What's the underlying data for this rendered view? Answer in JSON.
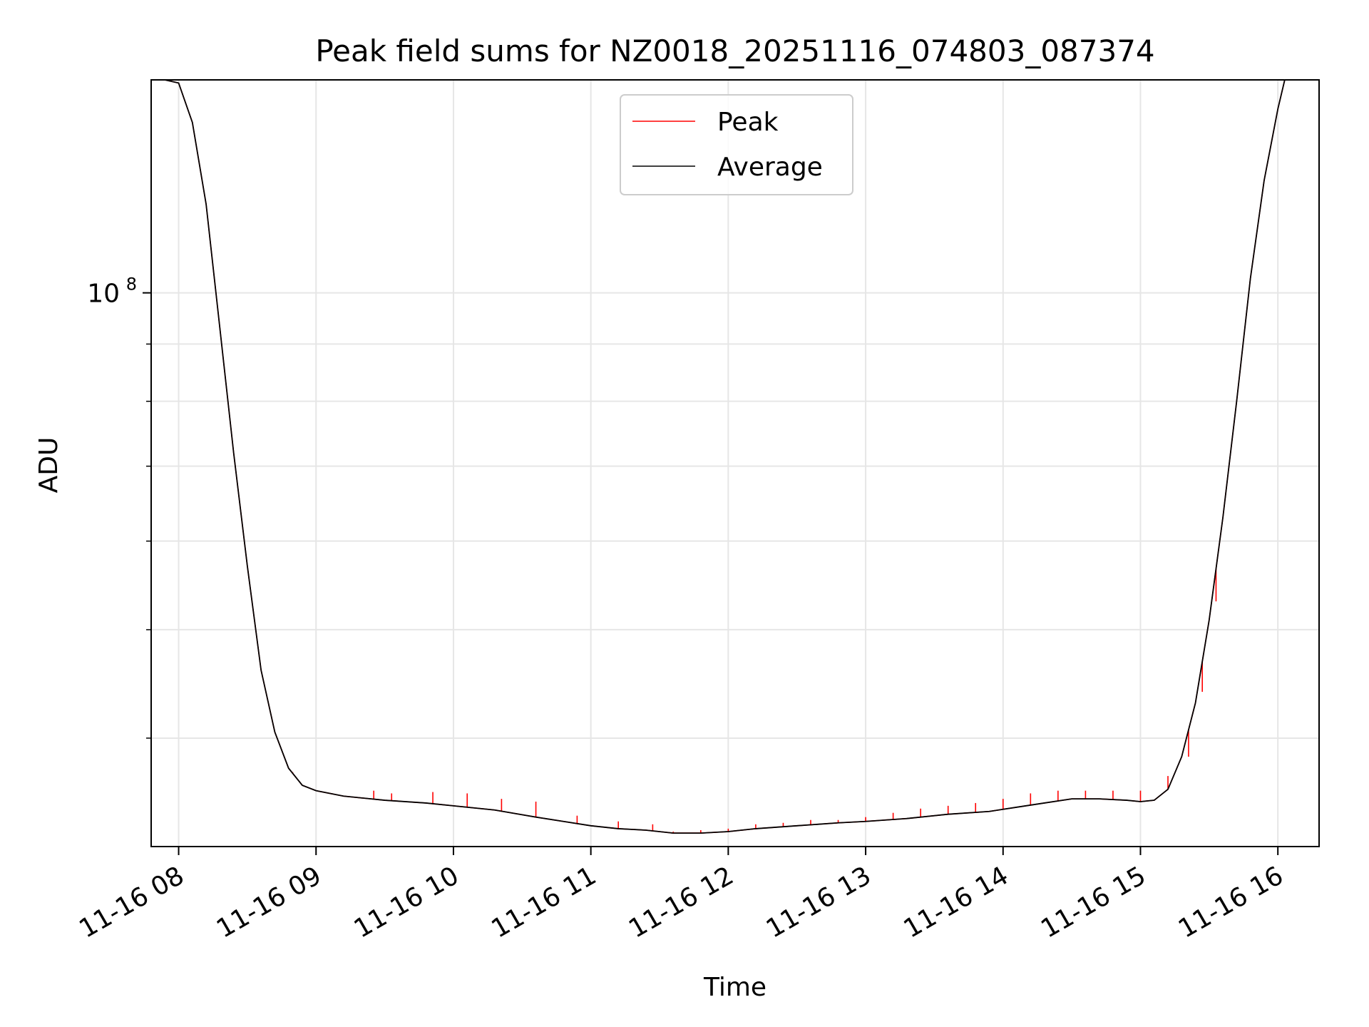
{
  "chart_data": {
    "type": "line",
    "title": "Peak field sums for NZ0018_20251116_074803_087374",
    "xlabel": "Time",
    "ylabel": "ADU",
    "yscale": "log",
    "xlim": [
      7.8,
      16.3
    ],
    "ylim": [
      32000000,
      155000000
    ],
    "grid": true,
    "legend_position": "upper center",
    "x_ticks": [
      {
        "value": 8,
        "label": "11-16 08"
      },
      {
        "value": 9,
        "label": "11-16 09"
      },
      {
        "value": 10,
        "label": "11-16 10"
      },
      {
        "value": 11,
        "label": "11-16 11"
      },
      {
        "value": 12,
        "label": "11-16 12"
      },
      {
        "value": 13,
        "label": "11-16 13"
      },
      {
        "value": 14,
        "label": "11-16 14"
      },
      {
        "value": 15,
        "label": "11-16 15"
      },
      {
        "value": 16,
        "label": "11-16 16"
      }
    ],
    "y_major_ticks": [
      {
        "value": 100000000,
        "base": "10",
        "exponent": "8"
      }
    ],
    "y_minor_ticks": [
      40000000,
      50000000,
      60000000,
      70000000,
      80000000,
      90000000,
      200000000
    ],
    "series": [
      {
        "name": "Peak",
        "color": "#ff0000",
        "note": "follows Average with frequent upward spikes",
        "spikes": [
          [
            8.83,
            37300000
          ],
          [
            9.42,
            35900000
          ],
          [
            9.55,
            35700000
          ],
          [
            9.85,
            35800000
          ],
          [
            10.1,
            35700000
          ],
          [
            10.35,
            35300000
          ],
          [
            10.6,
            35100000
          ],
          [
            10.9,
            34100000
          ],
          [
            11.2,
            33700000
          ],
          [
            11.45,
            33500000
          ],
          [
            11.6,
            33000000
          ],
          [
            11.8,
            33100000
          ],
          [
            12.0,
            33200000
          ],
          [
            12.2,
            33500000
          ],
          [
            12.4,
            33600000
          ],
          [
            12.6,
            33800000
          ],
          [
            12.8,
            33800000
          ],
          [
            13.0,
            34000000
          ],
          [
            13.2,
            34300000
          ],
          [
            13.4,
            34600000
          ],
          [
            13.6,
            34800000
          ],
          [
            13.8,
            35000000
          ],
          [
            14.0,
            35300000
          ],
          [
            14.2,
            35700000
          ],
          [
            14.4,
            35900000
          ],
          [
            14.6,
            35900000
          ],
          [
            14.8,
            35900000
          ],
          [
            15.0,
            35900000
          ],
          [
            15.2,
            37000000
          ],
          [
            15.35,
            38500000
          ],
          [
            15.45,
            44000000
          ],
          [
            15.55,
            53000000
          ]
        ]
      },
      {
        "name": "Average",
        "color": "#000000",
        "x": [
          7.8,
          7.9,
          8.0,
          8.1,
          8.2,
          8.3,
          8.4,
          8.5,
          8.6,
          8.7,
          8.8,
          8.9,
          9.0,
          9.2,
          9.5,
          9.8,
          10.0,
          10.3,
          10.6,
          10.8,
          11.0,
          11.2,
          11.4,
          11.6,
          11.8,
          12.0,
          12.2,
          12.5,
          12.8,
          13.0,
          13.3,
          13.6,
          13.9,
          14.1,
          14.3,
          14.5,
          14.7,
          14.9,
          15.0,
          15.1,
          15.2,
          15.3,
          15.4,
          15.5,
          15.6,
          15.7,
          15.8,
          15.9,
          16.0,
          16.05,
          16.3
        ],
        "y": [
          155000000,
          155000000,
          154000000,
          142000000,
          120000000,
          93000000,
          72000000,
          57000000,
          46000000,
          40500000,
          37600000,
          36300000,
          35900000,
          35500000,
          35200000,
          35000000,
          34800000,
          34500000,
          34000000,
          33700000,
          33400000,
          33200000,
          33100000,
          32900000,
          32900000,
          33000000,
          33200000,
          33400000,
          33600000,
          33700000,
          33900000,
          34200000,
          34400000,
          34700000,
          35000000,
          35300000,
          35300000,
          35200000,
          35100000,
          35200000,
          36000000,
          38500000,
          43000000,
          51000000,
          63000000,
          80000000,
          103000000,
          126000000,
          146000000,
          155000000,
          155000000
        ]
      }
    ]
  }
}
